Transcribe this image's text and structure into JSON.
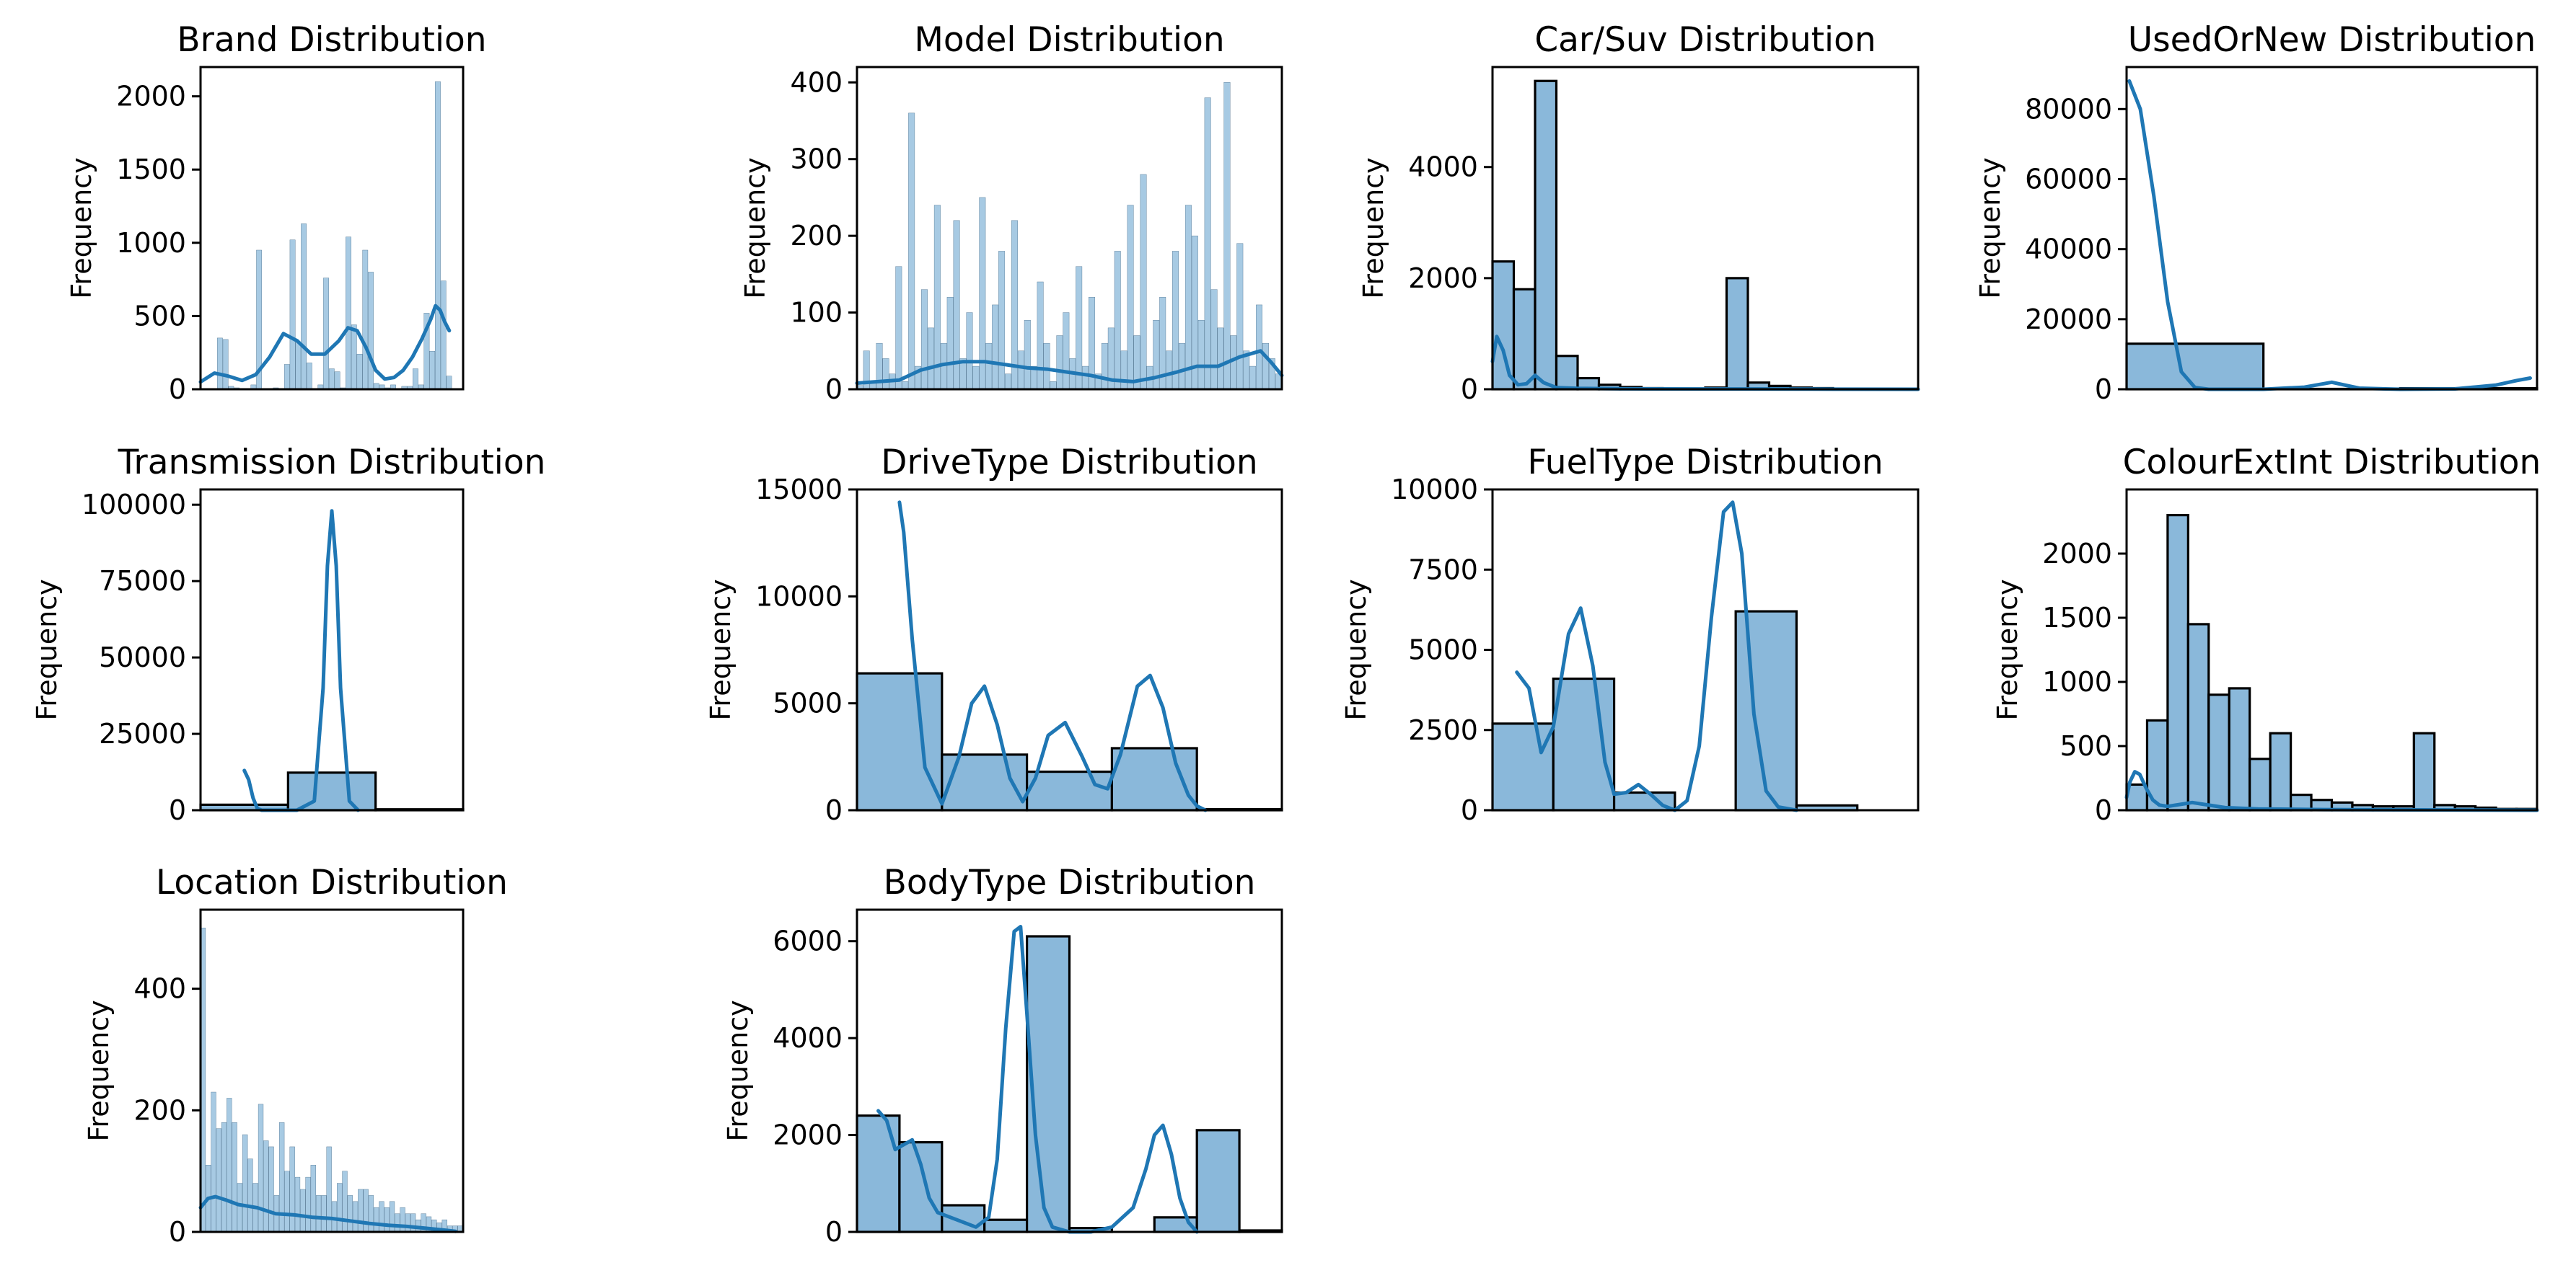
{
  "figure": {
    "bar_fill": "#8ab8da",
    "bar_edge": "#000000",
    "kde_color": "#1f77b4",
    "ylabel": "Frequency"
  },
  "chart_data": [
    {
      "type": "bar",
      "title": "Brand Distribution",
      "xlabel": "",
      "ylabel": "Frequency",
      "ylim": [
        0,
        2200
      ],
      "yticks": [
        0,
        500,
        1000,
        1500,
        2000
      ],
      "grid": false,
      "xticks_visible": false,
      "x_range": [
        0,
        57
      ],
      "values": [
        0,
        0,
        0,
        350,
        340,
        20,
        10,
        0,
        0,
        30,
        950,
        0,
        0,
        10,
        0,
        170,
        1020,
        320,
        1130,
        180,
        0,
        30,
        760,
        140,
        120,
        10,
        1040,
        440,
        240,
        950,
        800,
        40,
        30,
        10,
        30,
        0,
        20,
        20,
        140,
        30,
        520,
        260,
        2100,
        740,
        90,
        0,
        0
      ],
      "kde": [
        [
          0,
          50
        ],
        [
          3,
          110
        ],
        [
          6,
          90
        ],
        [
          9,
          60
        ],
        [
          12,
          100
        ],
        [
          15,
          220
        ],
        [
          18,
          380
        ],
        [
          21,
          330
        ],
        [
          24,
          240
        ],
        [
          27,
          240
        ],
        [
          30,
          330
        ],
        [
          32,
          420
        ],
        [
          34,
          400
        ],
        [
          36,
          280
        ],
        [
          38,
          130
        ],
        [
          40,
          70
        ],
        [
          42,
          80
        ],
        [
          44,
          130
        ],
        [
          46,
          220
        ],
        [
          48,
          340
        ],
        [
          50,
          480
        ],
        [
          51,
          570
        ],
        [
          52,
          540
        ],
        [
          53,
          460
        ],
        [
          54,
          400
        ]
      ]
    },
    {
      "type": "bar",
      "title": "Model Distribution",
      "xlabel": "",
      "ylabel": "Frequency",
      "ylim": [
        0,
        420
      ],
      "yticks": [
        0,
        100,
        200,
        300,
        400
      ],
      "grid": false,
      "xticks_visible": false,
      "x_range": [
        0,
        200
      ],
      "values": [
        5,
        50,
        10,
        60,
        40,
        20,
        160,
        10,
        360,
        30,
        130,
        80,
        240,
        60,
        120,
        220,
        40,
        100,
        30,
        250,
        60,
        110,
        180,
        20,
        220,
        50,
        90,
        30,
        140,
        60,
        10,
        70,
        100,
        40,
        160,
        30,
        120,
        20,
        60,
        80,
        180,
        50,
        240,
        70,
        280,
        30,
        90,
        120,
        50,
        180,
        60,
        240,
        200,
        90,
        380,
        130,
        80,
        400,
        70,
        190,
        50,
        30,
        110,
        60,
        40,
        20
      ],
      "kde": [
        [
          0,
          8
        ],
        [
          10,
          10
        ],
        [
          20,
          12
        ],
        [
          30,
          25
        ],
        [
          40,
          32
        ],
        [
          50,
          36
        ],
        [
          60,
          36
        ],
        [
          70,
          32
        ],
        [
          80,
          28
        ],
        [
          90,
          26
        ],
        [
          100,
          22
        ],
        [
          110,
          18
        ],
        [
          120,
          12
        ],
        [
          130,
          10
        ],
        [
          140,
          15
        ],
        [
          150,
          22
        ],
        [
          160,
          30
        ],
        [
          170,
          30
        ],
        [
          180,
          42
        ],
        [
          190,
          50
        ],
        [
          195,
          35
        ],
        [
          200,
          18
        ]
      ]
    },
    {
      "type": "bar",
      "title": "Car/Suv Distribution",
      "xlabel": "",
      "ylabel": "Frequency",
      "ylim": [
        0,
        5800
      ],
      "yticks": [
        0,
        2000,
        4000
      ],
      "grid": false,
      "xticks_visible": false,
      "x_range": [
        0,
        200
      ],
      "values": [
        2300,
        1800,
        5550,
        600,
        200,
        80,
        40,
        20,
        10,
        5,
        30,
        2000,
        120,
        60,
        30,
        20,
        10,
        10,
        5,
        5
      ],
      "kde": [
        [
          0,
          500
        ],
        [
          2,
          950
        ],
        [
          5,
          700
        ],
        [
          8,
          250
        ],
        [
          12,
          80
        ],
        [
          16,
          100
        ],
        [
          20,
          250
        ],
        [
          24,
          120
        ],
        [
          30,
          30
        ],
        [
          40,
          15
        ],
        [
          60,
          8
        ],
        [
          100,
          5
        ],
        [
          150,
          3
        ],
        [
          200,
          0
        ]
      ]
    },
    {
      "type": "bar",
      "title": "UsedOrNew Distribution",
      "xlabel": "",
      "ylabel": "Frequency",
      "ylim": [
        0,
        92000
      ],
      "yticks": [
        0,
        20000,
        40000,
        60000,
        80000
      ],
      "grid": false,
      "xticks_visible": false,
      "x_range": [
        0,
        3
      ],
      "values": [
        13000,
        100,
        300
      ],
      "kde": [
        [
          0.02,
          88000
        ],
        [
          0.1,
          80000
        ],
        [
          0.2,
          55000
        ],
        [
          0.3,
          25000
        ],
        [
          0.4,
          5000
        ],
        [
          0.5,
          500
        ],
        [
          0.6,
          0
        ],
        [
          1.0,
          0
        ],
        [
          1.3,
          600
        ],
        [
          1.5,
          2000
        ],
        [
          1.7,
          300
        ],
        [
          2.0,
          0
        ],
        [
          2.4,
          100
        ],
        [
          2.7,
          1200
        ],
        [
          2.85,
          2500
        ],
        [
          2.95,
          3200
        ]
      ]
    },
    {
      "type": "bar",
      "title": "Transmission Distribution",
      "xlabel": "",
      "ylabel": "Frequency",
      "ylim": [
        0,
        105000
      ],
      "yticks": [
        0,
        25000,
        50000,
        75000,
        100000
      ],
      "grid": false,
      "xticks_visible": false,
      "x_range": [
        0,
        3
      ],
      "values": [
        1800,
        12300,
        300
      ],
      "kde": [
        [
          0.5,
          13000
        ],
        [
          0.55,
          10000
        ],
        [
          0.6,
          4000
        ],
        [
          0.65,
          500
        ],
        [
          0.7,
          0
        ],
        [
          1.1,
          0
        ],
        [
          1.3,
          3000
        ],
        [
          1.4,
          40000
        ],
        [
          1.45,
          80000
        ],
        [
          1.5,
          98000
        ],
        [
          1.55,
          80000
        ],
        [
          1.6,
          40000
        ],
        [
          1.7,
          3000
        ],
        [
          1.8,
          0
        ]
      ]
    },
    {
      "type": "bar",
      "title": "DriveType Distribution",
      "xlabel": "",
      "ylabel": "Frequency",
      "ylim": [
        0,
        15000
      ],
      "yticks": [
        0,
        5000,
        10000,
        15000
      ],
      "grid": false,
      "xticks_visible": false,
      "x_range": [
        0,
        5
      ],
      "values": [
        6400,
        2600,
        1800,
        2900,
        50
      ],
      "kde": [
        [
          0.5,
          14400
        ],
        [
          0.55,
          13000
        ],
        [
          0.65,
          8000
        ],
        [
          0.8,
          2000
        ],
        [
          1.0,
          300
        ],
        [
          1.2,
          2500
        ],
        [
          1.35,
          5000
        ],
        [
          1.5,
          5800
        ],
        [
          1.65,
          4000
        ],
        [
          1.8,
          1500
        ],
        [
          1.95,
          400
        ],
        [
          2.1,
          1500
        ],
        [
          2.25,
          3500
        ],
        [
          2.45,
          4100
        ],
        [
          2.65,
          2500
        ],
        [
          2.8,
          1200
        ],
        [
          2.95,
          1000
        ],
        [
          3.1,
          2600
        ],
        [
          3.3,
          5800
        ],
        [
          3.45,
          6300
        ],
        [
          3.6,
          4800
        ],
        [
          3.75,
          2200
        ],
        [
          3.9,
          700
        ],
        [
          4.0,
          200
        ],
        [
          4.1,
          0
        ]
      ]
    },
    {
      "type": "bar",
      "title": "FuelType Distribution",
      "xlabel": "",
      "ylabel": "Frequency",
      "ylim": [
        0,
        10000
      ],
      "yticks": [
        0,
        2500,
        5000,
        7500,
        10000
      ],
      "grid": false,
      "xticks_visible": false,
      "x_range": [
        0,
        7
      ],
      "values": [
        2700,
        4100,
        550,
        0,
        6200,
        150,
        0
      ],
      "kde": [
        [
          0.4,
          4300
        ],
        [
          0.6,
          3800
        ],
        [
          0.8,
          1800
        ],
        [
          1.0,
          2600
        ],
        [
          1.25,
          5500
        ],
        [
          1.45,
          6300
        ],
        [
          1.65,
          4500
        ],
        [
          1.85,
          1500
        ],
        [
          2.0,
          500
        ],
        [
          2.2,
          550
        ],
        [
          2.4,
          800
        ],
        [
          2.6,
          500
        ],
        [
          2.8,
          150
        ],
        [
          3.0,
          0
        ],
        [
          3.2,
          300
        ],
        [
          3.4,
          2000
        ],
        [
          3.6,
          6000
        ],
        [
          3.8,
          9300
        ],
        [
          3.95,
          9600
        ],
        [
          4.1,
          8000
        ],
        [
          4.3,
          3000
        ],
        [
          4.5,
          600
        ],
        [
          4.7,
          100
        ],
        [
          5.0,
          0
        ]
      ]
    },
    {
      "type": "bar",
      "title": "ColourExtInt Distribution",
      "xlabel": "",
      "ylabel": "Frequency",
      "ylim": [
        0,
        2500
      ],
      "yticks": [
        0,
        500,
        1000,
        1500,
        2000
      ],
      "grid": false,
      "xticks_visible": false,
      "x_range": [
        0,
        250
      ],
      "values": [
        200,
        700,
        2300,
        1450,
        900,
        950,
        400,
        600,
        120,
        80,
        60,
        40,
        30,
        30,
        600,
        40,
        30,
        20,
        10,
        10
      ],
      "kde": [
        [
          0,
          100
        ],
        [
          2,
          220
        ],
        [
          5,
          300
        ],
        [
          8,
          280
        ],
        [
          12,
          170
        ],
        [
          16,
          80
        ],
        [
          20,
          40
        ],
        [
          25,
          30
        ],
        [
          30,
          40
        ],
        [
          40,
          60
        ],
        [
          50,
          40
        ],
        [
          60,
          20
        ],
        [
          80,
          10
        ],
        [
          120,
          5
        ],
        [
          250,
          0
        ]
      ]
    },
    {
      "type": "bar",
      "title": "Location Distribution",
      "xlabel": "",
      "ylabel": "Frequency",
      "ylim": [
        0,
        530
      ],
      "yticks": [
        0,
        200,
        400
      ],
      "grid": false,
      "xticks_visible": false,
      "x_range": [
        0,
        700
      ],
      "values": [
        500,
        110,
        230,
        170,
        180,
        220,
        180,
        80,
        160,
        120,
        80,
        210,
        150,
        140,
        60,
        180,
        100,
        140,
        90,
        70,
        90,
        110,
        60,
        60,
        140,
        50,
        80,
        100,
        60,
        50,
        70,
        70,
        60,
        40,
        50,
        40,
        50,
        30,
        40,
        30,
        30,
        20,
        30,
        25,
        20,
        15,
        20,
        10,
        10,
        10
      ],
      "kde": [
        [
          0,
          40
        ],
        [
          20,
          55
        ],
        [
          40,
          58
        ],
        [
          70,
          52
        ],
        [
          100,
          45
        ],
        [
          150,
          40
        ],
        [
          200,
          30
        ],
        [
          250,
          28
        ],
        [
          300,
          24
        ],
        [
          350,
          22
        ],
        [
          400,
          18
        ],
        [
          450,
          14
        ],
        [
          500,
          11
        ],
        [
          550,
          9
        ],
        [
          600,
          6
        ],
        [
          650,
          3
        ],
        [
          680,
          1
        ]
      ]
    },
    {
      "type": "bar",
      "title": "BodyType Distribution",
      "xlabel": "",
      "ylabel": "Frequency",
      "ylim": [
        0,
        6650
      ],
      "yticks": [
        0,
        2000,
        4000,
        6000
      ],
      "grid": false,
      "xticks_visible": false,
      "x_range": [
        0,
        10
      ],
      "values": [
        2400,
        1850,
        550,
        250,
        6100,
        80,
        0,
        300,
        2100,
        30
      ],
      "kde": [
        [
          0.5,
          2500
        ],
        [
          0.7,
          2300
        ],
        [
          0.9,
          1700
        ],
        [
          1.1,
          1800
        ],
        [
          1.3,
          1900
        ],
        [
          1.5,
          1400
        ],
        [
          1.7,
          700
        ],
        [
          1.9,
          400
        ],
        [
          2.2,
          300
        ],
        [
          2.5,
          200
        ],
        [
          2.8,
          100
        ],
        [
          3.1,
          300
        ],
        [
          3.3,
          1500
        ],
        [
          3.5,
          4200
        ],
        [
          3.7,
          6200
        ],
        [
          3.85,
          6300
        ],
        [
          4.0,
          4500
        ],
        [
          4.2,
          2000
        ],
        [
          4.4,
          500
        ],
        [
          4.6,
          100
        ],
        [
          5.0,
          0
        ],
        [
          5.5,
          0
        ],
        [
          6.0,
          100
        ],
        [
          6.5,
          500
        ],
        [
          6.8,
          1300
        ],
        [
          7.0,
          2000
        ],
        [
          7.2,
          2200
        ],
        [
          7.4,
          1600
        ],
        [
          7.6,
          700
        ],
        [
          7.8,
          200
        ],
        [
          8.0,
          0
        ]
      ]
    }
  ]
}
